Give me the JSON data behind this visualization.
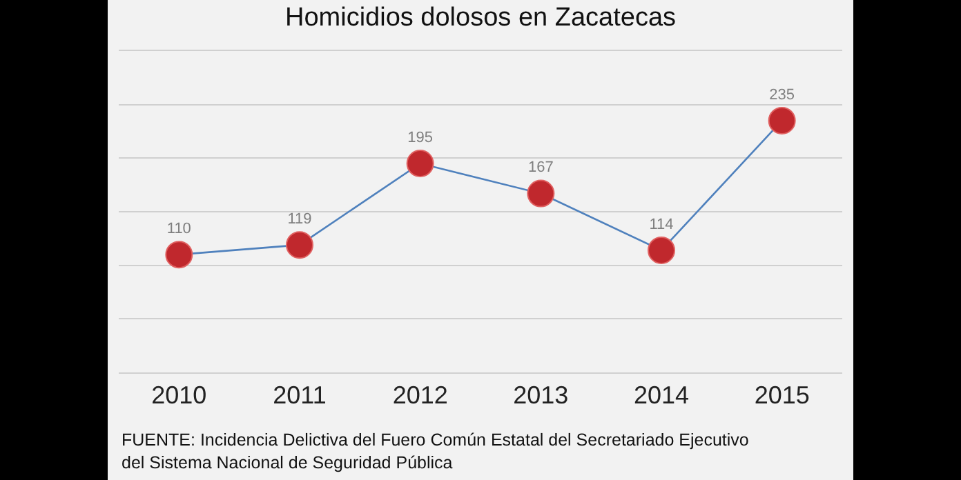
{
  "chart_data": {
    "type": "line",
    "title": "Homicidios dolosos en Zacatecas",
    "categories": [
      "2010",
      "2011",
      "2012",
      "2013",
      "2014",
      "2015"
    ],
    "series": [
      {
        "color": "#4f81bd",
        "values": [
          110,
          119,
          195,
          167,
          114,
          235
        ]
      }
    ],
    "ylim": [
      0,
      300
    ],
    "yticks": [
      {
        "value": 0,
        "label": null
      },
      {
        "value": 50,
        "label": null
      },
      {
        "value": 100,
        "label": null
      },
      {
        "value": 150,
        "label": null
      },
      {
        "value": 200,
        "label": null
      },
      {
        "value": 250,
        "label": null
      },
      {
        "value": 300,
        "label": null
      }
    ],
    "grid": "y",
    "tick_labels": "x",
    "data_labels": true,
    "marker": "circle",
    "line_style": "solid",
    "annotations": [
      "FUENTE: Incidencia Delictiva del Fuero Común Estatal del Secretariado Ejecutivo\ndel Sistema Nacional de Seguridad Pública"
    ]
  }
}
